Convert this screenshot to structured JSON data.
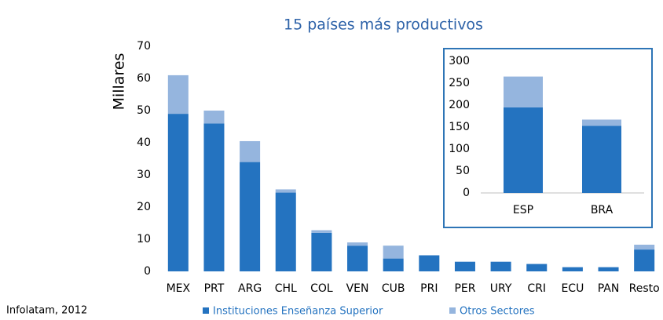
{
  "chart_data": [
    {
      "type": "bar",
      "stacked": true,
      "title": "15 países más productivos",
      "ylabel": "Millares",
      "categories": [
        "MEX",
        "PRT",
        "ARG",
        "CHL",
        "COL",
        "VEN",
        "CUB",
        "PRI",
        "PER",
        "URY",
        "CRI",
        "ECU",
        "PAN",
        "Resto"
      ],
      "series": [
        {
          "name": "Instituciones Enseñanza Superior",
          "color": "#2473c0",
          "values": [
            49,
            46,
            34,
            24.5,
            12,
            8,
            4,
            5,
            3,
            3,
            2.3,
            1.3,
            1.3,
            6.8
          ]
        },
        {
          "name": "Otros Sectores",
          "color": "#95b5de",
          "values": [
            12,
            4,
            6.5,
            1,
            0.8,
            1,
            4,
            0,
            0,
            0,
            0,
            0,
            0,
            1.5
          ]
        }
      ],
      "ylim": [
        0,
        70
      ],
      "yticks": [
        0,
        10,
        20,
        30,
        40,
        50,
        60,
        70
      ],
      "grid": false,
      "legend": "bottom"
    },
    {
      "type": "bar",
      "stacked": true,
      "categories": [
        "ESP",
        "BRA"
      ],
      "series": [
        {
          "color": "#2473c0",
          "values": [
            195,
            153
          ]
        },
        {
          "color": "#95b5de",
          "values": [
            70,
            14
          ]
        }
      ],
      "ylim": [
        0,
        300
      ],
      "yticks": [
        0,
        50,
        100,
        150,
        200,
        250,
        300
      ],
      "grid": false
    }
  ],
  "source": "Infolatam, 2012"
}
